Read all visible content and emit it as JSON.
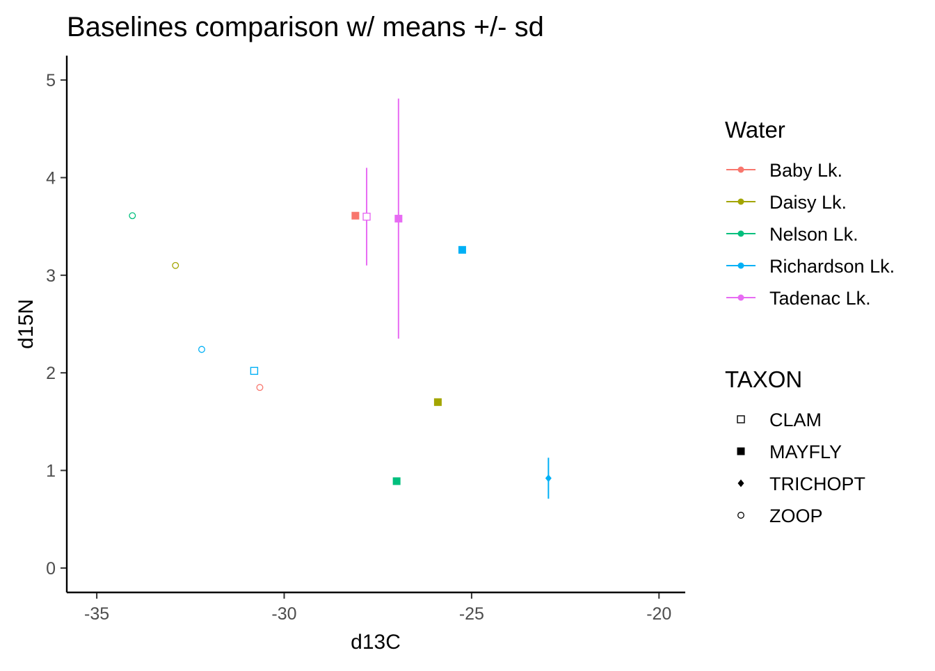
{
  "chart_data": {
    "type": "scatter",
    "title": "Baselines comparison w/ means +/- sd",
    "xlabel": "d13C",
    "ylabel": "d15N",
    "xlim": [
      -35.8,
      -19.3
    ],
    "ylim": [
      -0.25,
      5.25
    ],
    "xticks": [
      -35,
      -30,
      -25,
      -20
    ],
    "yticks": [
      0,
      1,
      2,
      3,
      4,
      5
    ],
    "xtick_labels": [
      "-35",
      "-30",
      "-25",
      "-20"
    ],
    "ytick_labels": [
      "0",
      "1",
      "2",
      "3",
      "4",
      "5"
    ],
    "grid": false,
    "error_bars": "means +/- sd",
    "color_legend": {
      "title": "Water",
      "placement": "right",
      "entries": [
        {
          "label": "Baby Lk.",
          "color": "#F8766D"
        },
        {
          "label": "Daisy Lk.",
          "color": "#A3A500"
        },
        {
          "label": "Nelson Lk.",
          "color": "#00BF7D"
        },
        {
          "label": "Richardson Lk.",
          "color": "#00B0F6"
        },
        {
          "label": "Tadenac Lk.",
          "color": "#E76BF3"
        }
      ]
    },
    "shape_legend": {
      "title": "TAXON",
      "placement": "right",
      "entries": [
        {
          "label": "CLAM",
          "shape": "open-square"
        },
        {
          "label": "MAYFLY",
          "shape": "filled-square"
        },
        {
          "label": "TRICHOPT",
          "shape": "filled-diamond"
        },
        {
          "label": "ZOOP",
          "shape": "open-circle"
        }
      ]
    },
    "points": [
      {
        "water": "Nelson Lk.",
        "taxon": "ZOOP",
        "x": -34.05,
        "y": 3.61
      },
      {
        "water": "Daisy Lk.",
        "taxon": "ZOOP",
        "x": -32.9,
        "y": 3.1
      },
      {
        "water": "Richardson Lk.",
        "taxon": "ZOOP",
        "x": -32.2,
        "y": 2.24
      },
      {
        "water": "Richardson Lk.",
        "taxon": "CLAM",
        "x": -30.8,
        "y": 2.02
      },
      {
        "water": "Baby Lk.",
        "taxon": "ZOOP",
        "x": -30.65,
        "y": 1.85
      },
      {
        "water": "Baby Lk.",
        "taxon": "MAYFLY",
        "x": -28.1,
        "y": 3.61
      },
      {
        "water": "Tadenac Lk.",
        "taxon": "CLAM",
        "x": -27.8,
        "y": 3.6,
        "ymin": 3.1,
        "ymax": 4.1
      },
      {
        "water": "Tadenac Lk.",
        "taxon": "MAYFLY",
        "x": -26.95,
        "y": 3.58,
        "ymin": 2.35,
        "ymax": 4.81
      },
      {
        "water": "Nelson Lk.",
        "taxon": "MAYFLY",
        "x": -27.0,
        "y": 0.89
      },
      {
        "water": "Daisy Lk.",
        "taxon": "MAYFLY",
        "x": -25.9,
        "y": 1.7
      },
      {
        "water": "Richardson Lk.",
        "taxon": "MAYFLY",
        "x": -25.25,
        "y": 3.26
      },
      {
        "water": "Richardson Lk.",
        "taxon": "TRICHOPT",
        "x": -22.95,
        "y": 0.92,
        "ymin": 0.71,
        "ymax": 1.13
      }
    ]
  }
}
